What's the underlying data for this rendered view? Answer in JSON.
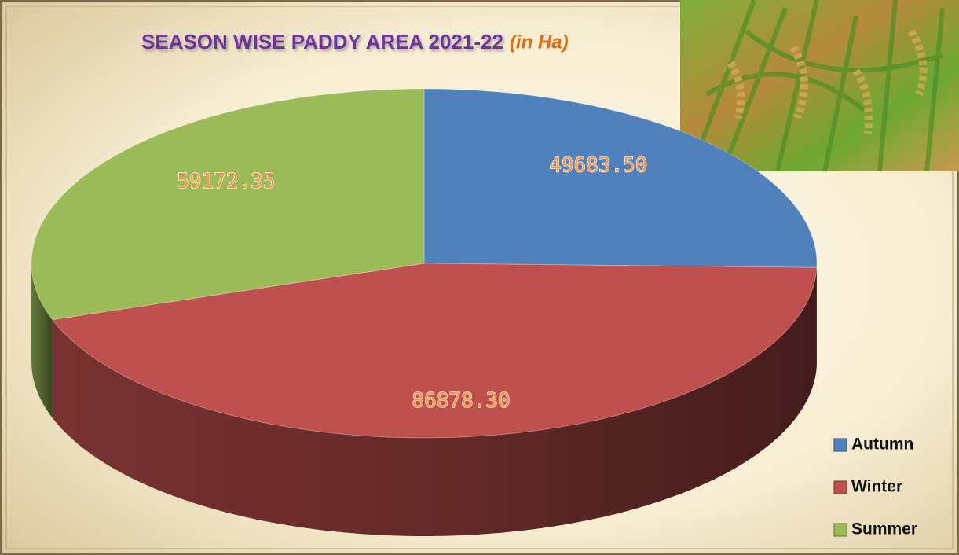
{
  "chart_data": {
    "type": "pie3d",
    "title": "SEASON WISE PADDY AREA 2021-22",
    "subtitle": "(in Ha)",
    "categories": [
      "Autumn",
      "Winter",
      "Summer"
    ],
    "values": [
      49683.5,
      86878.3,
      59172.35
    ],
    "value_labels": [
      "49683.50",
      "86878.30",
      "59172.35"
    ],
    "colors": [
      "#4f81bd",
      "#c0504d",
      "#9bbb59"
    ],
    "legend": "right"
  }
}
